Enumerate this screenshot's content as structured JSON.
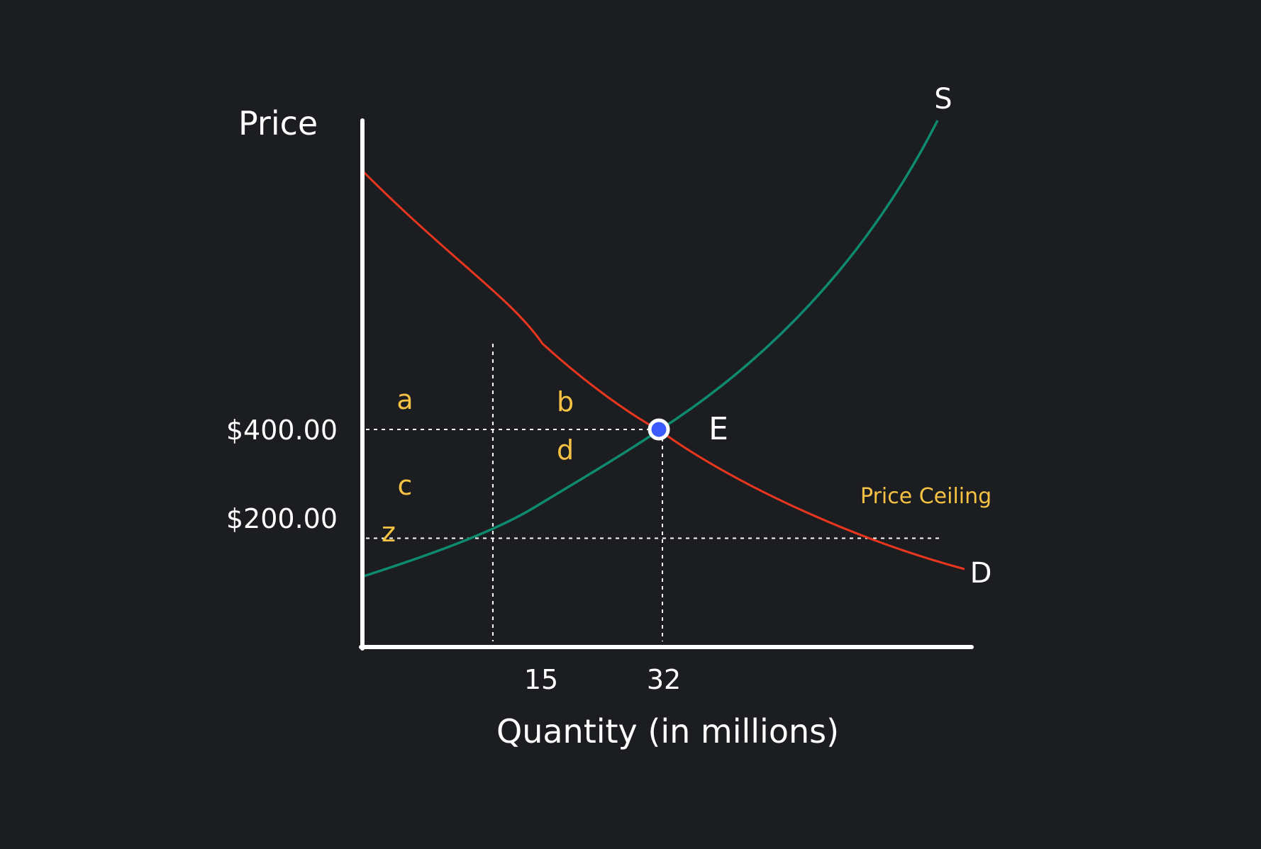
{
  "chart_data": {
    "type": "line",
    "title": "",
    "xlabel": "Quantity (in millions)",
    "ylabel": "Price",
    "xticks": [
      {
        "value": 15,
        "label": "15"
      },
      {
        "value": 32,
        "label": "32"
      }
    ],
    "yticks": [
      {
        "value": 400,
        "label": "$400.00"
      },
      {
        "value": 200,
        "label": "$200.00"
      }
    ],
    "xlim": [
      0,
      85
    ],
    "ylim": [
      0,
      1220
    ],
    "series": [
      {
        "name": "D",
        "color": "#e8361f",
        "x": [
          0,
          8,
          15,
          22,
          28,
          32,
          40,
          50,
          55,
          65,
          75,
          84
        ],
        "y": [
          1090,
          780,
          585,
          500,
          440,
          400,
          340,
          280,
          245,
          210,
          170,
          180
        ]
      },
      {
        "name": "S",
        "color": "#0e8a6e",
        "x": [
          0,
          10,
          15,
          20,
          26,
          32,
          40,
          50,
          60,
          70,
          80
        ],
        "y": [
          160,
          190,
          240,
          320,
          360,
          400,
          510,
          640,
          800,
          960,
          1210
        ]
      }
    ],
    "reference_lines": [
      {
        "axis": "y",
        "value": 400,
        "x_to": 32
      },
      {
        "axis": "y",
        "value": 200,
        "x_to": 82,
        "label": "Price Ceiling"
      },
      {
        "axis": "x",
        "value": 15,
        "y_to": 700
      },
      {
        "axis": "x",
        "value": 32,
        "y_to": 400
      }
    ],
    "points": [
      {
        "label": "E",
        "x": 32,
        "y": 400
      }
    ],
    "area_labels": [
      {
        "label": "a",
        "x": 5,
        "y": 465
      },
      {
        "label": "b",
        "x": 20,
        "y": 455
      },
      {
        "label": "d",
        "x": 20,
        "y": 335
      },
      {
        "label": "c",
        "x": 5,
        "y": 275
      },
      {
        "label": "z",
        "x": 3,
        "y": 160
      }
    ],
    "colors": {
      "background": "#1c1d20",
      "axis": "#ffffff",
      "text": "#ffffff",
      "accent_labels": "#f5c243",
      "point_fill": "#3b5bff",
      "reference": "#ffffff"
    }
  }
}
